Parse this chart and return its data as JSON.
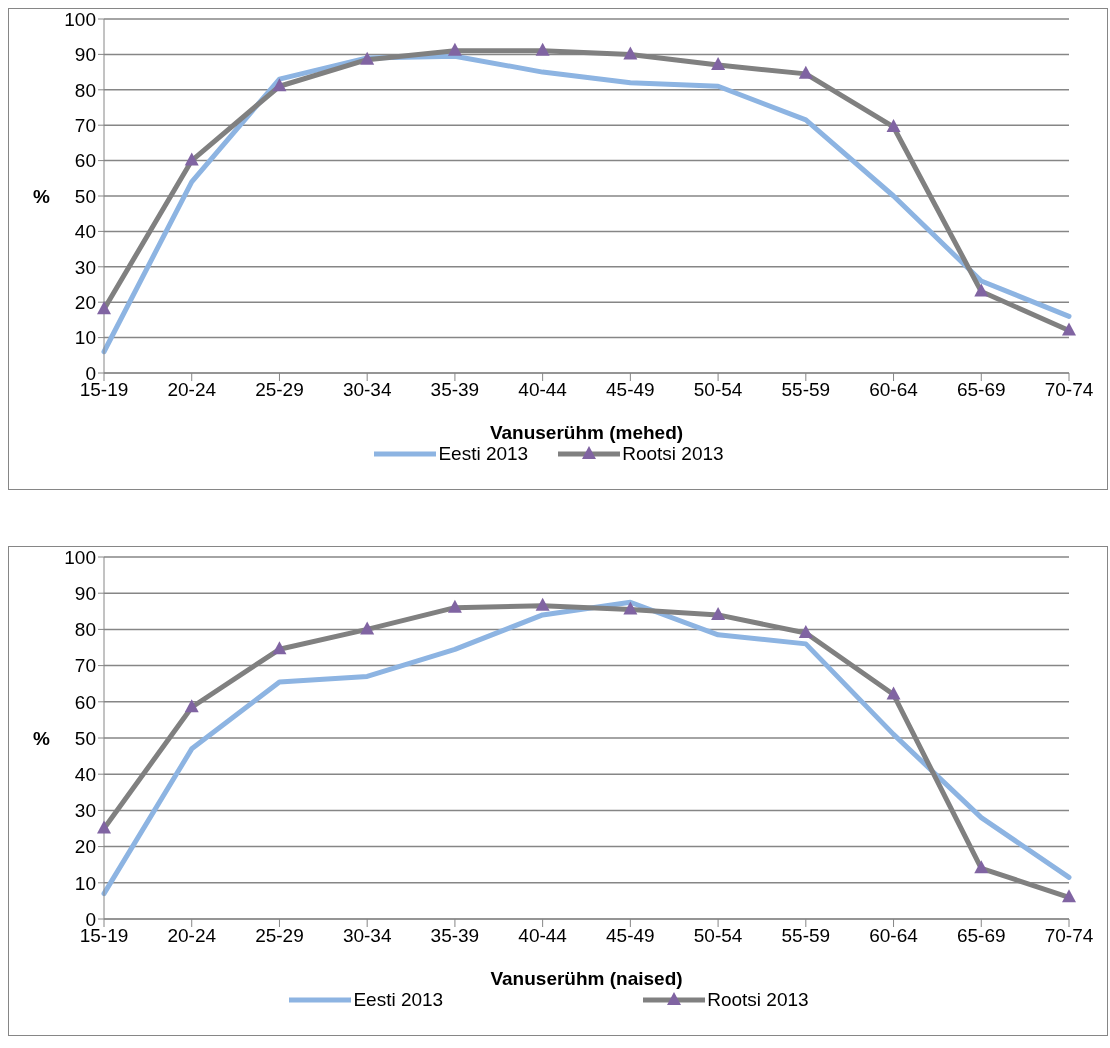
{
  "chart_data": [
    {
      "type": "line",
      "xlabel": "Vanuserühm (mehed)",
      "ylabel": "%",
      "categories": [
        "15-19",
        "20-24",
        "25-29",
        "30-34",
        "35-39",
        "40-44",
        "45-49",
        "50-54",
        "55-59",
        "60-64",
        "65-69",
        "70-74"
      ],
      "series": [
        {
          "name": "Eesti 2013",
          "color": "#8db4e2",
          "marker": "none",
          "values": [
            6,
            54,
            83,
            89,
            89.5,
            85,
            82,
            81,
            71.5,
            50,
            26,
            16
          ]
        },
        {
          "name": "Rootsi 2013",
          "color": "#808080",
          "marker": "triangle",
          "values": [
            18,
            60,
            81,
            88.5,
            91,
            91,
            90,
            87,
            84.5,
            69.5,
            23,
            12
          ]
        }
      ],
      "ylim": [
        0,
        100
      ],
      "yticks": [
        0,
        10,
        20,
        30,
        40,
        50,
        60,
        70,
        80,
        90,
        100
      ],
      "grid": "y",
      "legend": "bottom",
      "line_style": "solid"
    },
    {
      "type": "line",
      "xlabel": "Vanuserühm (naised)",
      "ylabel": "%",
      "categories": [
        "15-19",
        "20-24",
        "25-29",
        "30-34",
        "35-39",
        "40-44",
        "45-49",
        "50-54",
        "55-59",
        "60-64",
        "65-69",
        "70-74"
      ],
      "series": [
        {
          "name": "Eesti 2013",
          "color": "#8db4e2",
          "marker": "none",
          "values": [
            7,
            47,
            65.5,
            67,
            74.5,
            84,
            87.5,
            78.5,
            76,
            51,
            28,
            11.5
          ]
        },
        {
          "name": "Rootsi 2013",
          "color": "#808080",
          "marker": "triangle",
          "values": [
            25,
            58.5,
            74.5,
            80,
            86,
            86.5,
            85.5,
            84,
            79,
            62,
            14,
            6
          ]
        }
      ],
      "ylim": [
        0,
        100
      ],
      "yticks": [
        0,
        10,
        20,
        30,
        40,
        50,
        60,
        70,
        80,
        90,
        100
      ],
      "grid": "y",
      "legend": "bottom",
      "line_style": "solid"
    }
  ]
}
